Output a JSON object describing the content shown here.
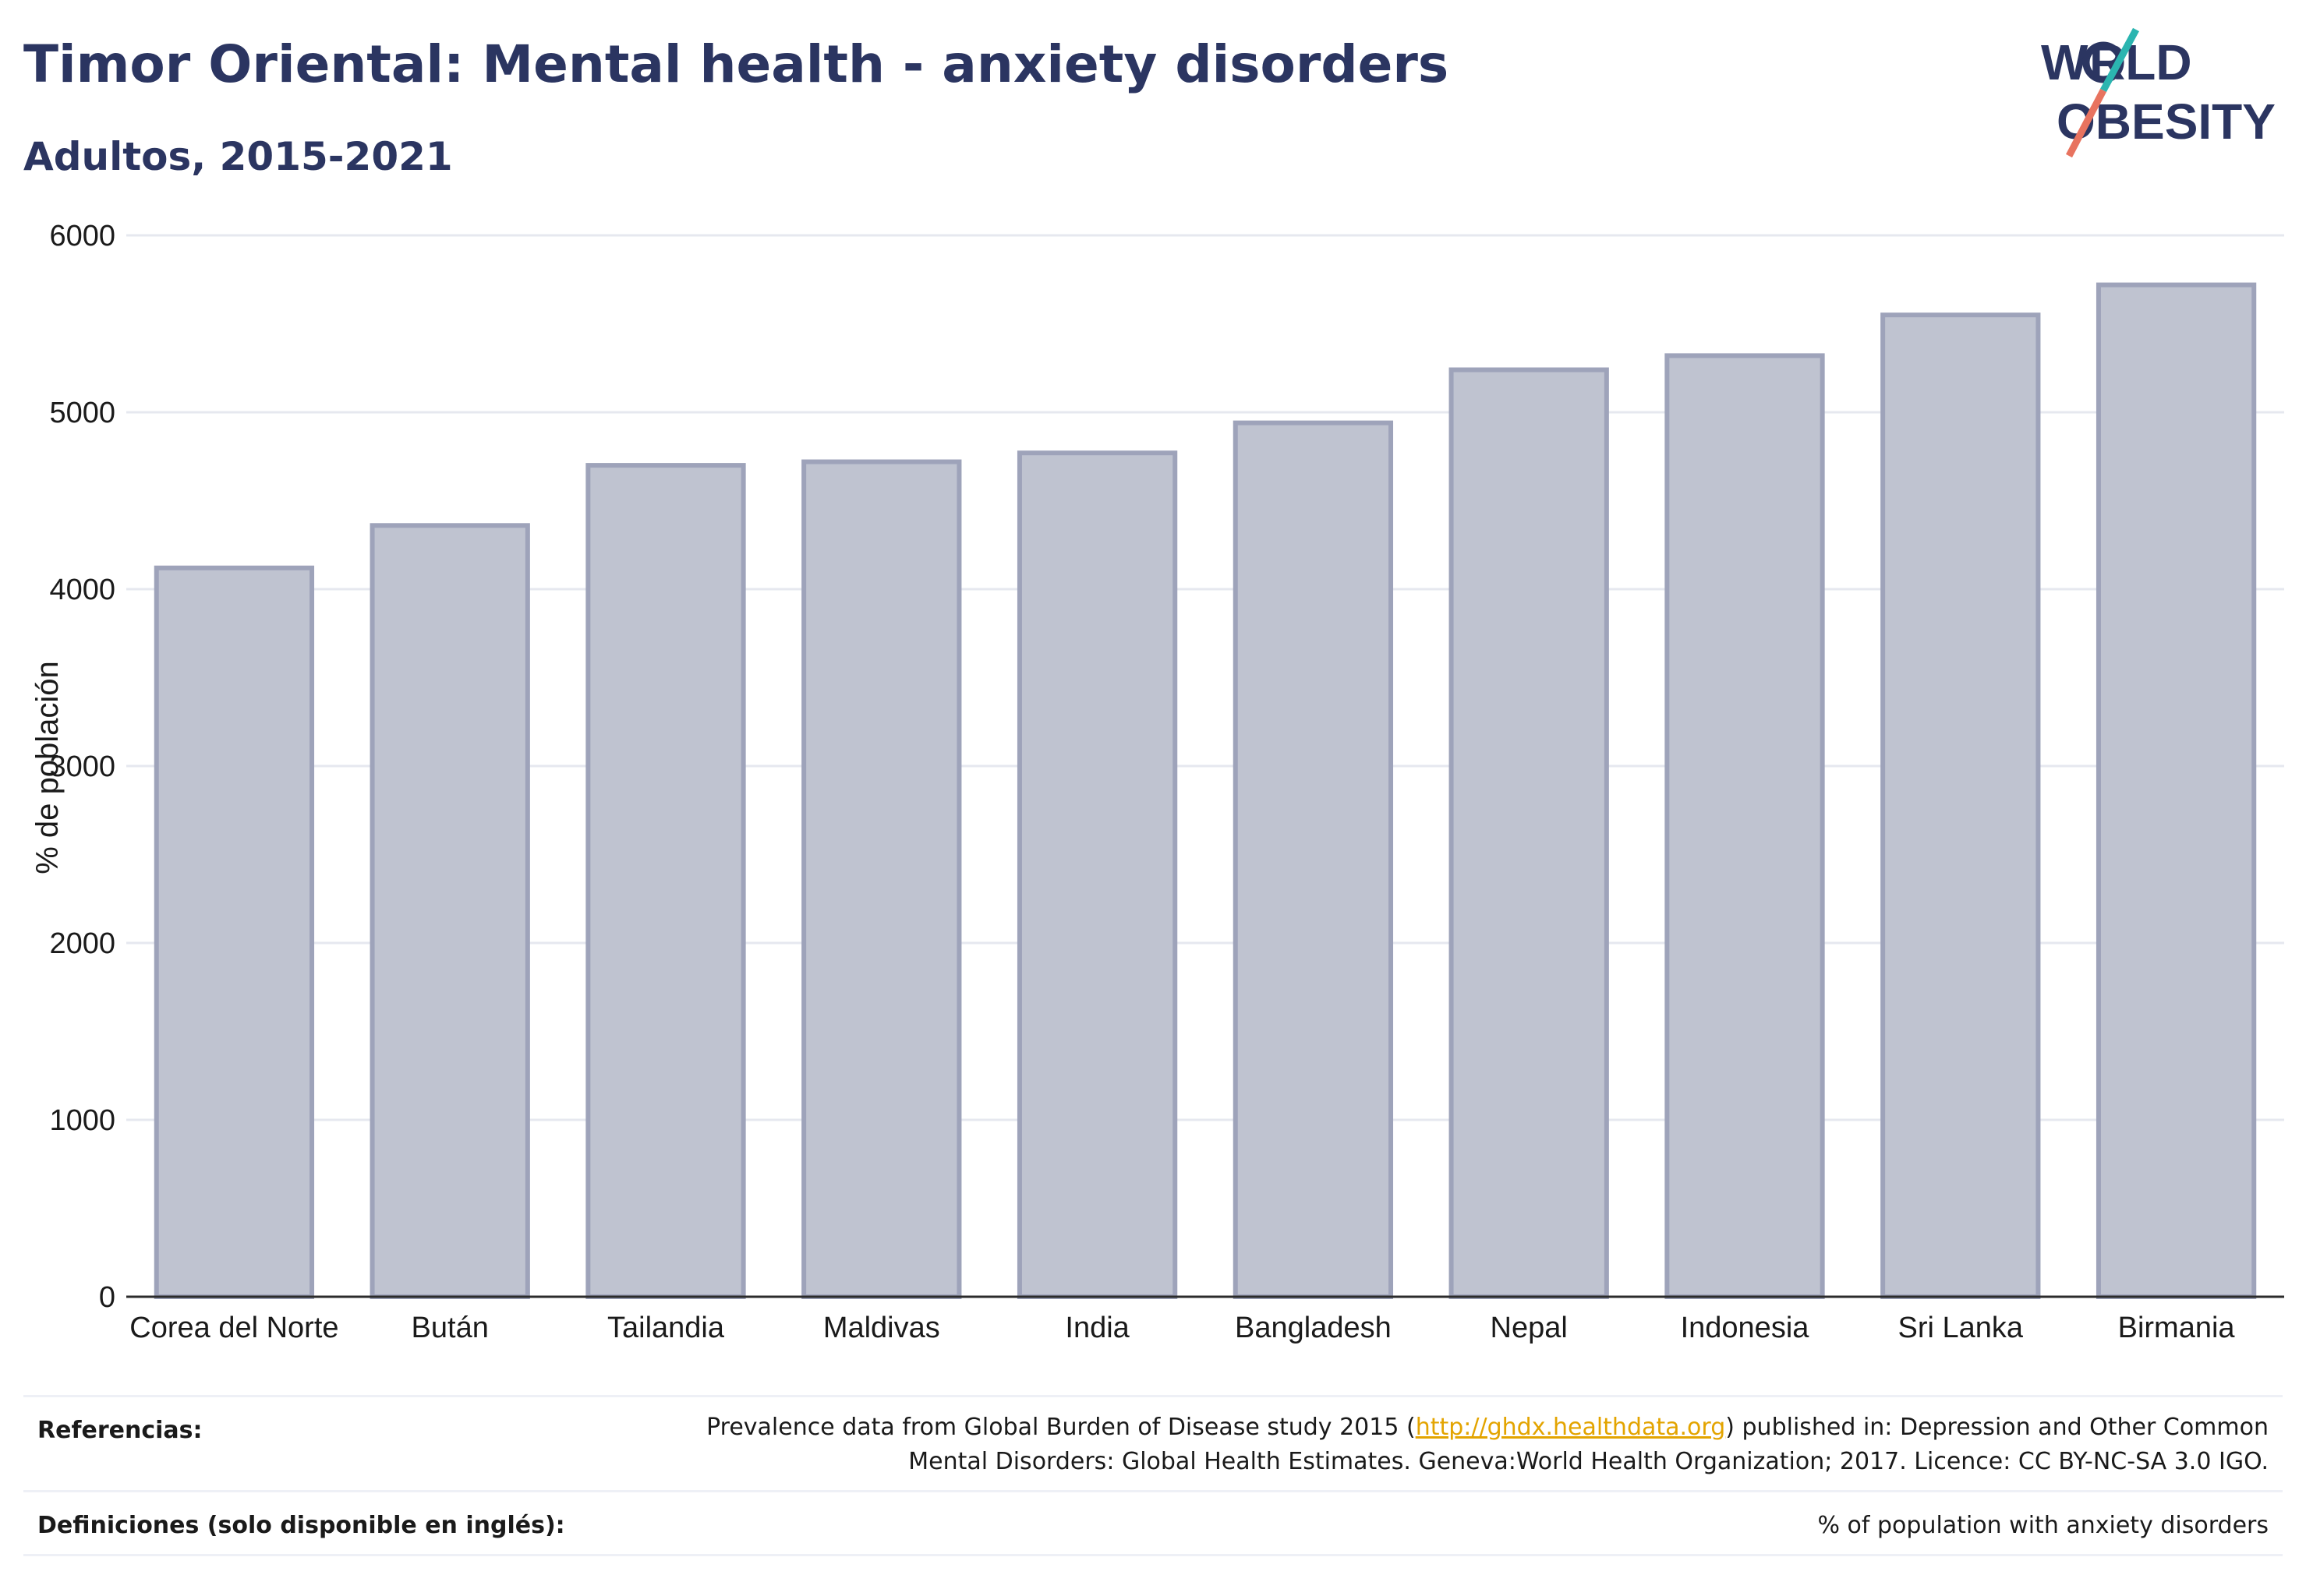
{
  "title": "Timor Oriental: Mental health - anxiety disorders",
  "subtitle": "Adultos, 2015-2021",
  "logo": {
    "line1": "W RLD",
    "line2": "OBESITY",
    "brand_color": "#2b3561",
    "accent_teal": "#2bb5b0",
    "accent_coral": "#e8735f"
  },
  "footer": {
    "references_label": "Referencias:",
    "references_text_before": "Prevalence data from Global Burden of Disease study 2015 (",
    "references_link": "http://ghdx.healthdata.org",
    "references_text_after": ") published in: Depression and Other Common Mental Disorders: Global Health Estimates. Geneva:World Health Organization; 2017. Licence: CC BY-NC-SA 3.0 IGO.",
    "definitions_label": "Definiciones (solo disponible en inglés):",
    "definitions_text": "% of population with anxiety disorders"
  },
  "chart_data": {
    "type": "bar",
    "ylabel": "% de población",
    "xlabel": "",
    "ylim": [
      0,
      6000
    ],
    "yticks": [
      0,
      1000,
      2000,
      3000,
      4000,
      5000,
      6000
    ],
    "grid": true,
    "categories": [
      "Corea del Norte",
      "Bután",
      "Tailandia",
      "Maldivas",
      "India",
      "Bangladesh",
      "Nepal",
      "Indonesia",
      "Sri Lanka",
      "Birmania"
    ],
    "values": [
      4120,
      4360,
      4700,
      4720,
      4770,
      4940,
      5240,
      5320,
      5550,
      5720
    ],
    "bar_fill": "#bfc3d0",
    "bar_stroke": "#9ea3ba"
  }
}
